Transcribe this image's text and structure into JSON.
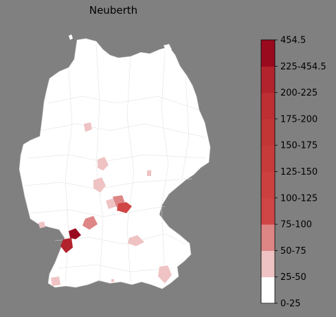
{
  "title": "Neuberth",
  "legend": {
    "bins": [
      {
        "label": "0-25",
        "color": "#ffffff"
      },
      {
        "label": "25-50",
        "color": "#efc3c3"
      },
      {
        "label": "50-75",
        "color": "#de8585"
      },
      {
        "label": "75-100",
        "color": "#d04545"
      },
      {
        "label": "100-125",
        "color": "#cc4040"
      },
      {
        "label": "125-150",
        "color": "#c83b3b"
      },
      {
        "label": "150-175",
        "color": "#c33636"
      },
      {
        "label": "175-200",
        "color": "#bd2f32"
      },
      {
        "label": "200-225",
        "color": "#b3232d"
      },
      {
        "label": "225-454.5",
        "color": "#a81a28"
      },
      {
        "label": "454.5",
        "color": "#990a1e"
      }
    ]
  },
  "colors": {
    "background": "#808080",
    "land": "#ffffff",
    "border": "#d9d9d9"
  }
}
